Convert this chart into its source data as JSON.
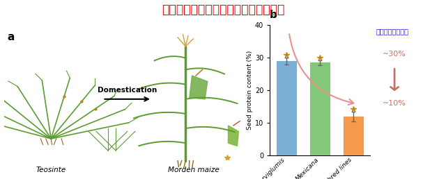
{
  "title": "从野生玉米中找回丢失的高蛋白基因！",
  "title_color": "#EE0000",
  "title_fontsize": 12.5,
  "panel_b_label": "b",
  "panel_a_label": "a",
  "categories": [
    "Parviglumis",
    "Mexicana",
    "Inbred lines"
  ],
  "values": [
    29.0,
    28.5,
    12.0
  ],
  "error_bars": [
    1.0,
    0.8,
    1.5
  ],
  "bar_colors": [
    "#7bafd4",
    "#82c878",
    "#f5994a"
  ],
  "ylabel": "Seed protein content (%)",
  "ylim": [
    0,
    40
  ],
  "yticks": [
    0,
    10,
    20,
    30,
    40
  ],
  "annotation_text": "蛋白含量显著降低",
  "annotation_color": "#1a1aff",
  "percent_30": "~30%",
  "percent_10": "~10%",
  "arrow_color": "#c87060",
  "domestication_text": "Domestication",
  "teosinte_label": "Teosinte",
  "maize_label": "Morden maize",
  "bg_color": "#FFFFFF"
}
